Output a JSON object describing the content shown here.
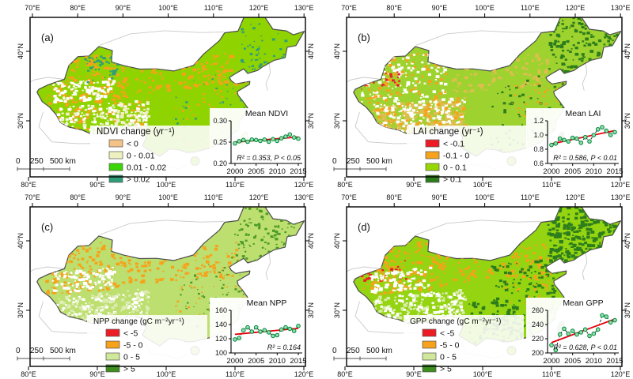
{
  "figure": {
    "background": "#ffffff",
    "frame_color": "#000000",
    "outline_color": "#4d4d4d",
    "neighbor_line_color": "#c9c9c9"
  },
  "shared_axes": {
    "top_ticks": [
      "70°E",
      "80°E",
      "90°E",
      "100°E",
      "110°E",
      "120°E",
      "130°E"
    ],
    "bottom_ticks": [
      "80°E",
      "90°E",
      "100°E",
      "110°E",
      "120°E"
    ],
    "lat_ticks": [
      "40°N",
      "30°N"
    ],
    "scalebar": {
      "labels": [
        "0",
        "250",
        "500"
      ],
      "unit": "km"
    }
  },
  "panels": [
    {
      "id": "a",
      "label": "(a)",
      "legend": {
        "title": "NDVI change (yr⁻¹)",
        "items": [
          {
            "color": "#F4C287",
            "label": "< 0"
          },
          {
            "color": "#EEF0C0",
            "label": "0 - 0.01"
          },
          {
            "color": "#3BD405",
            "label": "0.01 - 0.02"
          },
          {
            "color": "#2F9E78",
            "label": "> 0.02"
          }
        ]
      },
      "map_colors": {
        "base": "#8FD400",
        "orange": "#F7A21B",
        "red": "#ED1C24",
        "dark": "#2F9E78",
        "pale": "#EFEFC9",
        "yellow": "#D9C35A",
        "white": "#FFFFFF"
      }
    },
    {
      "id": "b",
      "label": "(b)",
      "legend": {
        "title": "LAI change (yr⁻¹)",
        "items": [
          {
            "color": "#ED1C24",
            "label": "< -0.1"
          },
          {
            "color": "#F7A21B",
            "label": "-0.1 - 0"
          },
          {
            "color": "#97D700",
            "label": "0 - 0.1"
          },
          {
            "color": "#2E7D1D",
            "label": "> 0.1"
          }
        ]
      },
      "map_colors": {
        "base": "#9ED32F",
        "orange": "#F7A21B",
        "red": "#ED1C24",
        "dark": "#2E7D1D",
        "pale": "#EDEFC3",
        "yellow": "#DDBE4E",
        "white": "#FFFFFF"
      }
    },
    {
      "id": "c",
      "label": "(c)",
      "legend": {
        "title": "NPP change (gC m⁻²yr⁻¹)",
        "items": [
          {
            "color": "#ED1C24",
            "label": "< -5"
          },
          {
            "color": "#F7A21B",
            "label": "-5 - 0"
          },
          {
            "color": "#CFE899",
            "label": "0 - 5"
          },
          {
            "color": "#3F8F1F",
            "label": "> 5"
          }
        ]
      },
      "map_colors": {
        "base": "#BCDF6F",
        "orange": "#F7A21B",
        "red": "#ED1C24",
        "dark": "#4C9926",
        "pale": "#DCEBB0",
        "yellow": "#D9C35A",
        "white": "#FFFFFF"
      }
    },
    {
      "id": "d",
      "label": "(d)",
      "legend": {
        "title": "GPP change (gC m⁻²yr⁻¹)",
        "items": [
          {
            "color": "#ED1C24",
            "label": "< -5"
          },
          {
            "color": "#F7A21B",
            "label": "-5 - 0"
          },
          {
            "color": "#CFE899",
            "label": "0 - 5"
          },
          {
            "color": "#3F8F1F",
            "label": "> 5"
          }
        ]
      },
      "map_colors": {
        "base": "#94D411",
        "orange": "#F7A21B",
        "red": "#ED1C24",
        "dark": "#2E7D1D",
        "pale": "#D8ECA8",
        "yellow": "#D9C35A",
        "white": "#FFFFFF"
      }
    }
  ],
  "chart_data": [
    {
      "type": "line",
      "title": "Mean NDVI",
      "stats": "R² = 0.353, P < 0.05",
      "x": [
        2000,
        2001,
        2002,
        2003,
        2004,
        2005,
        2006,
        2007,
        2008,
        2009,
        2010,
        2011,
        2012,
        2013,
        2014,
        2015
      ],
      "values": [
        0.247,
        0.252,
        0.255,
        0.251,
        0.256,
        0.255,
        0.253,
        0.256,
        0.251,
        0.257,
        0.253,
        0.259,
        0.263,
        0.268,
        0.261,
        0.258
      ],
      "ylim": [
        0.2,
        0.3
      ],
      "ytick_labels": [
        "0.20",
        "0.25",
        "0.30"
      ],
      "xtick_labels": [
        "2000",
        "2005",
        "2010",
        "2015"
      ],
      "marker_color": "#00A651",
      "trend_color": "#E8000B",
      "line_style": "dashed-black"
    },
    {
      "type": "line",
      "title": "Mean LAI",
      "stats": "R² = 0.586, P < 0.01",
      "x": [
        2000,
        2001,
        2002,
        2003,
        2004,
        2005,
        2006,
        2007,
        2008,
        2009,
        2010,
        2011,
        2012,
        2013,
        2014,
        2015
      ],
      "values": [
        0.86,
        0.88,
        0.95,
        0.93,
        0.91,
        0.96,
        0.95,
        0.89,
        0.97,
        0.91,
        1.0,
        1.08,
        1.11,
        1.06,
        1.0,
        1.04
      ],
      "ylim": [
        0.6,
        1.2
      ],
      "ytick_labels": [
        "0.6",
        "0.8",
        "1.0",
        "1.2"
      ],
      "xtick_labels": [
        "2000",
        "2005",
        "2010",
        "2015"
      ],
      "marker_color": "#00A651",
      "trend_color": "#E8000B",
      "line_style": "dashed-black"
    },
    {
      "type": "line",
      "title": "Mean NPP",
      "stats": "R² = 0.164",
      "x": [
        2000,
        2001,
        2002,
        2003,
        2004,
        2005,
        2006,
        2007,
        2008,
        2009,
        2010,
        2011,
        2012,
        2013,
        2014,
        2015
      ],
      "values": [
        119,
        121,
        132,
        136,
        130,
        136,
        130,
        132,
        129,
        124,
        125,
        133,
        136,
        134,
        131,
        138
      ],
      "ylim": [
        100,
        160
      ],
      "ytick_labels": [
        "100",
        "120",
        "140",
        "160"
      ],
      "xtick_labels": [
        "2000",
        "2005",
        "2010",
        "2015"
      ],
      "marker_color": "#00A651",
      "trend_color": "#E8000B",
      "line_style": "dashed-black"
    },
    {
      "type": "line",
      "title": "Mean GPP",
      "stats": "R² = 0.628, P < 0.01",
      "x": [
        2000,
        2001,
        2002,
        2003,
        2004,
        2005,
        2006,
        2007,
        2008,
        2009,
        2010,
        2011,
        2012,
        2013,
        2014,
        2015
      ],
      "values": [
        211,
        204,
        226,
        234,
        227,
        231,
        226,
        229,
        233,
        224,
        227,
        233,
        253,
        251,
        243,
        246
      ],
      "ylim": [
        200,
        260
      ],
      "ytick_labels": [
        "200",
        "220",
        "240",
        "260"
      ],
      "xtick_labels": [
        "2000",
        "2005",
        "2010",
        "2015"
      ],
      "marker_color": "#00A651",
      "trend_color": "#E8000B",
      "line_style": "dashed-black"
    }
  ]
}
